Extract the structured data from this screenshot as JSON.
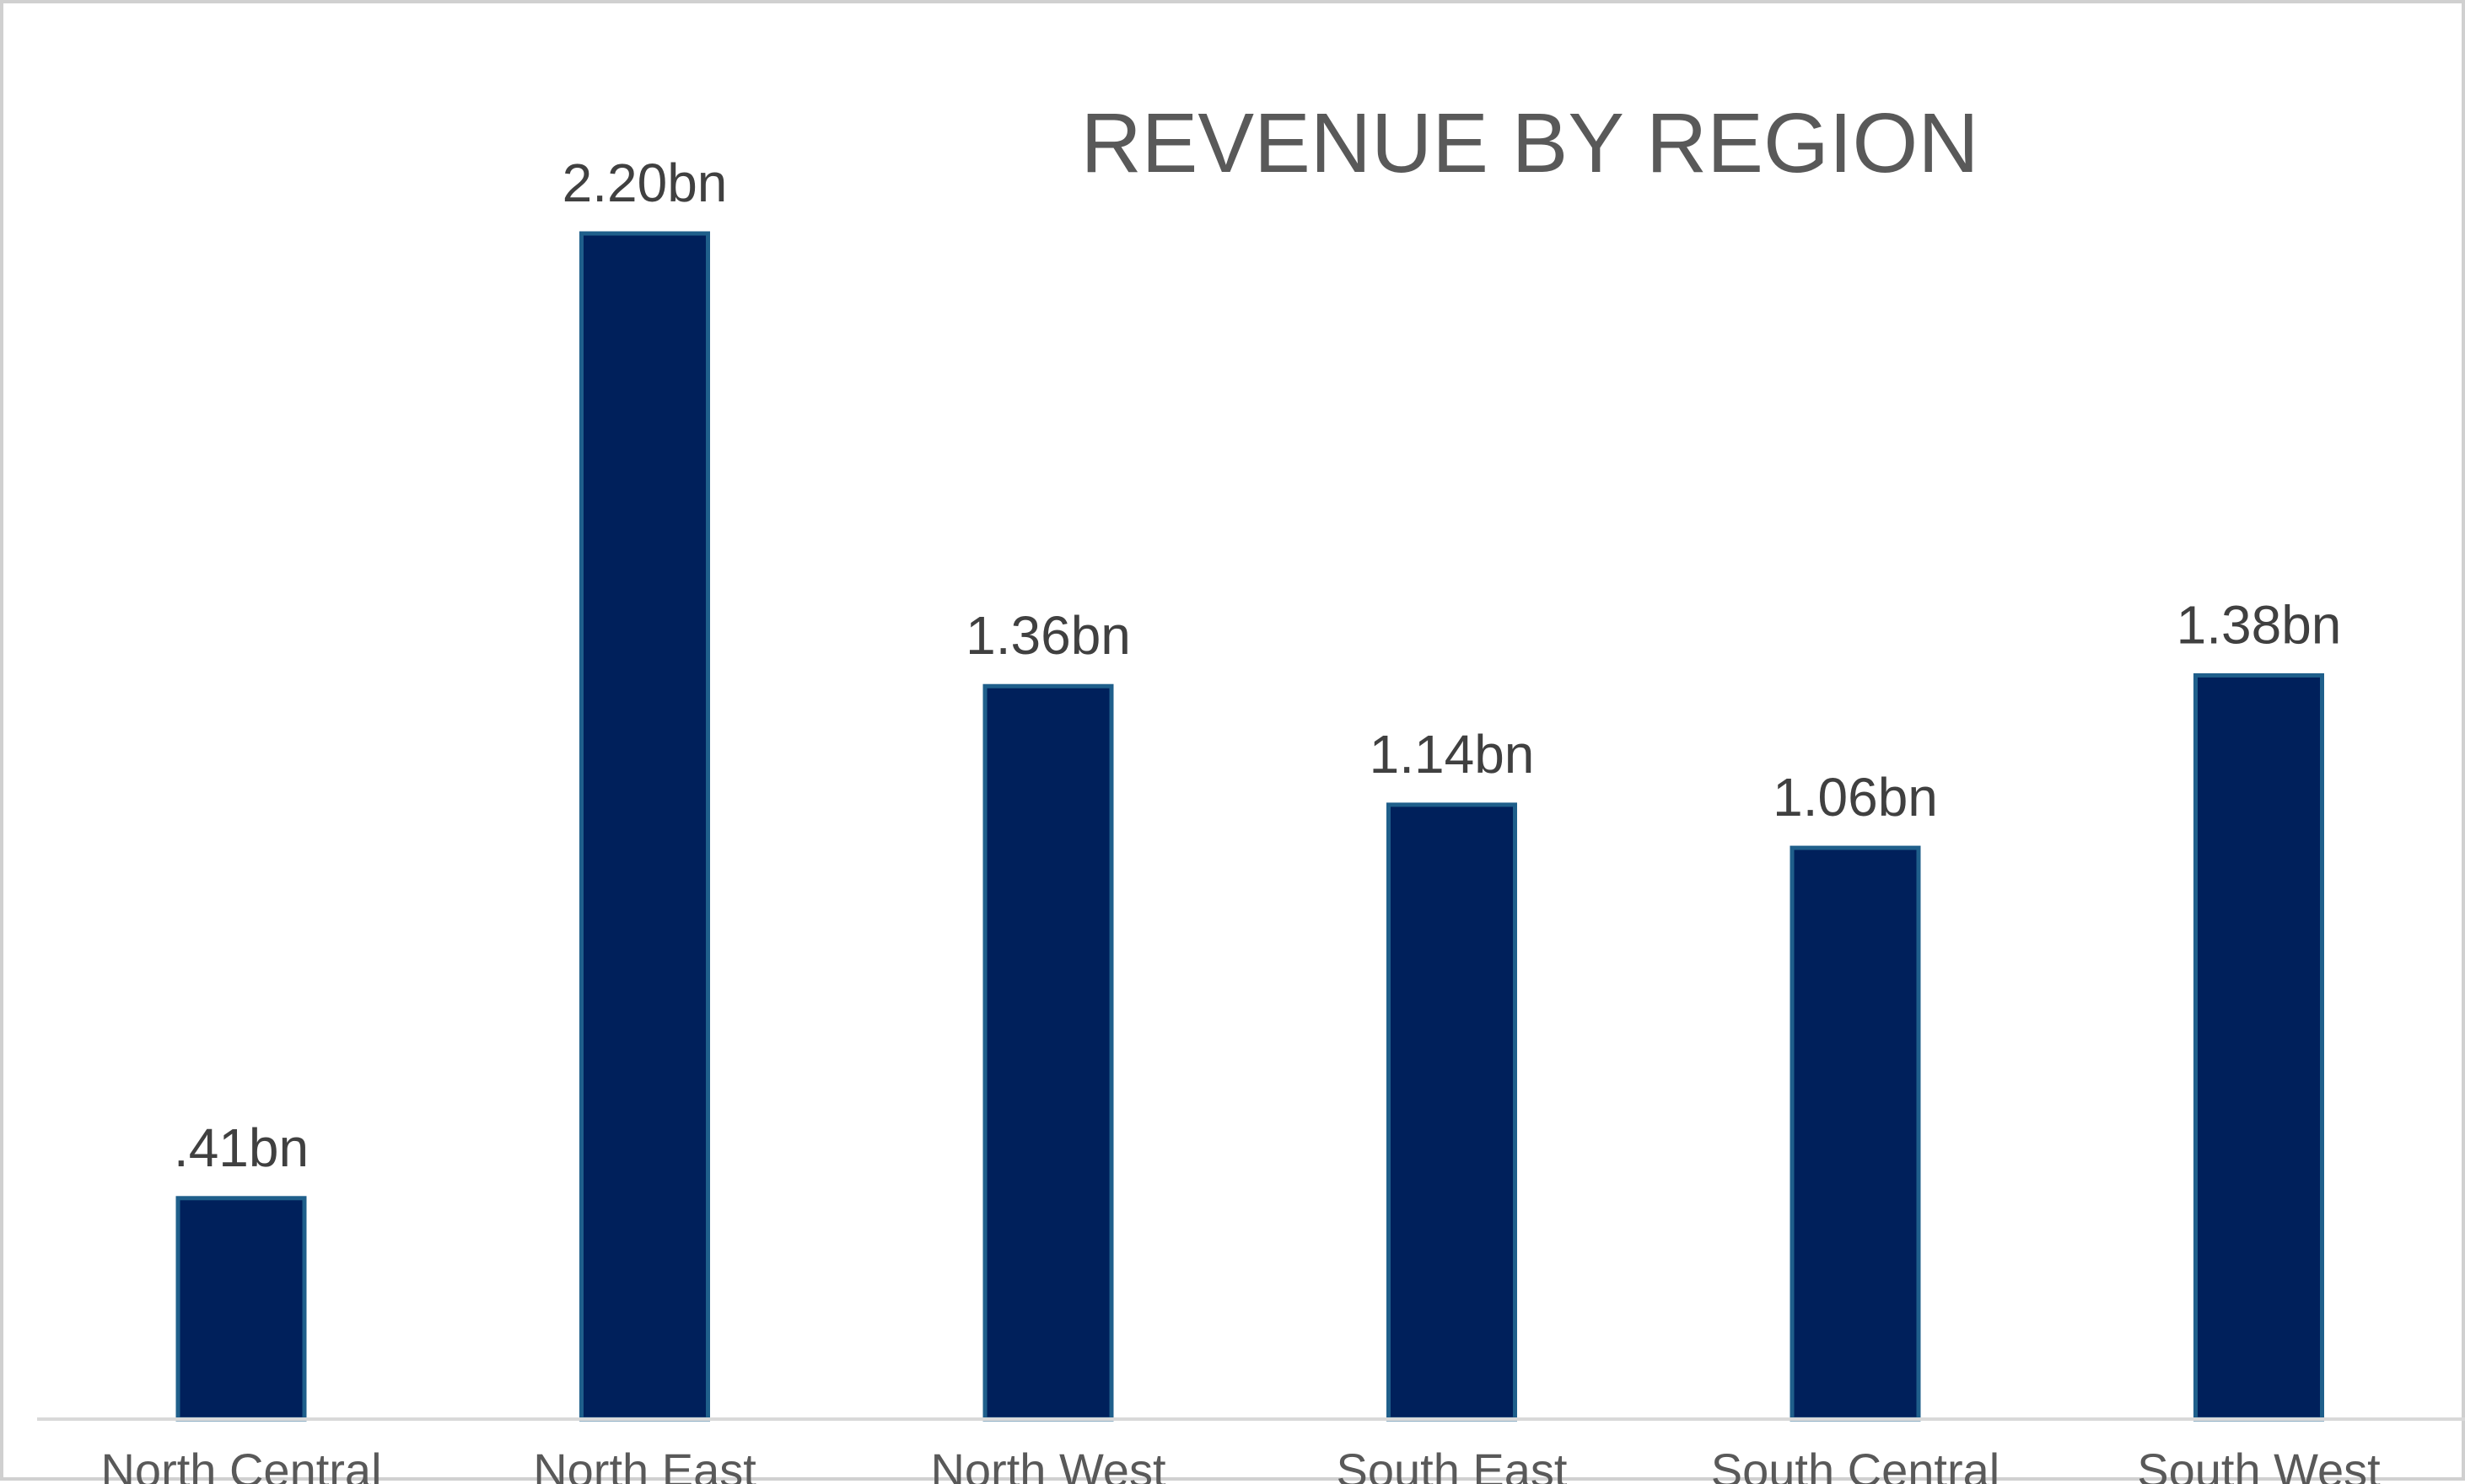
{
  "chart_data": {
    "type": "bar",
    "title": "REVENUE BY REGION",
    "categories": [
      "North Central",
      "North East",
      "North West",
      "South East",
      "South Central",
      "South West"
    ],
    "values": [
      0.41,
      2.2,
      1.36,
      1.14,
      1.06,
      1.38
    ],
    "data_labels": [
      ".41bn",
      "2.20bn",
      "1.36bn",
      "1.14bn",
      "1.06bn",
      "1.38bn"
    ],
    "ylim": [
      0,
      2.2
    ],
    "grid": false,
    "legend": "none",
    "colors": {
      "bar_fill": "#00205b",
      "bar_edge": "#1f5f8b",
      "axis": "#d9d9d9"
    }
  }
}
